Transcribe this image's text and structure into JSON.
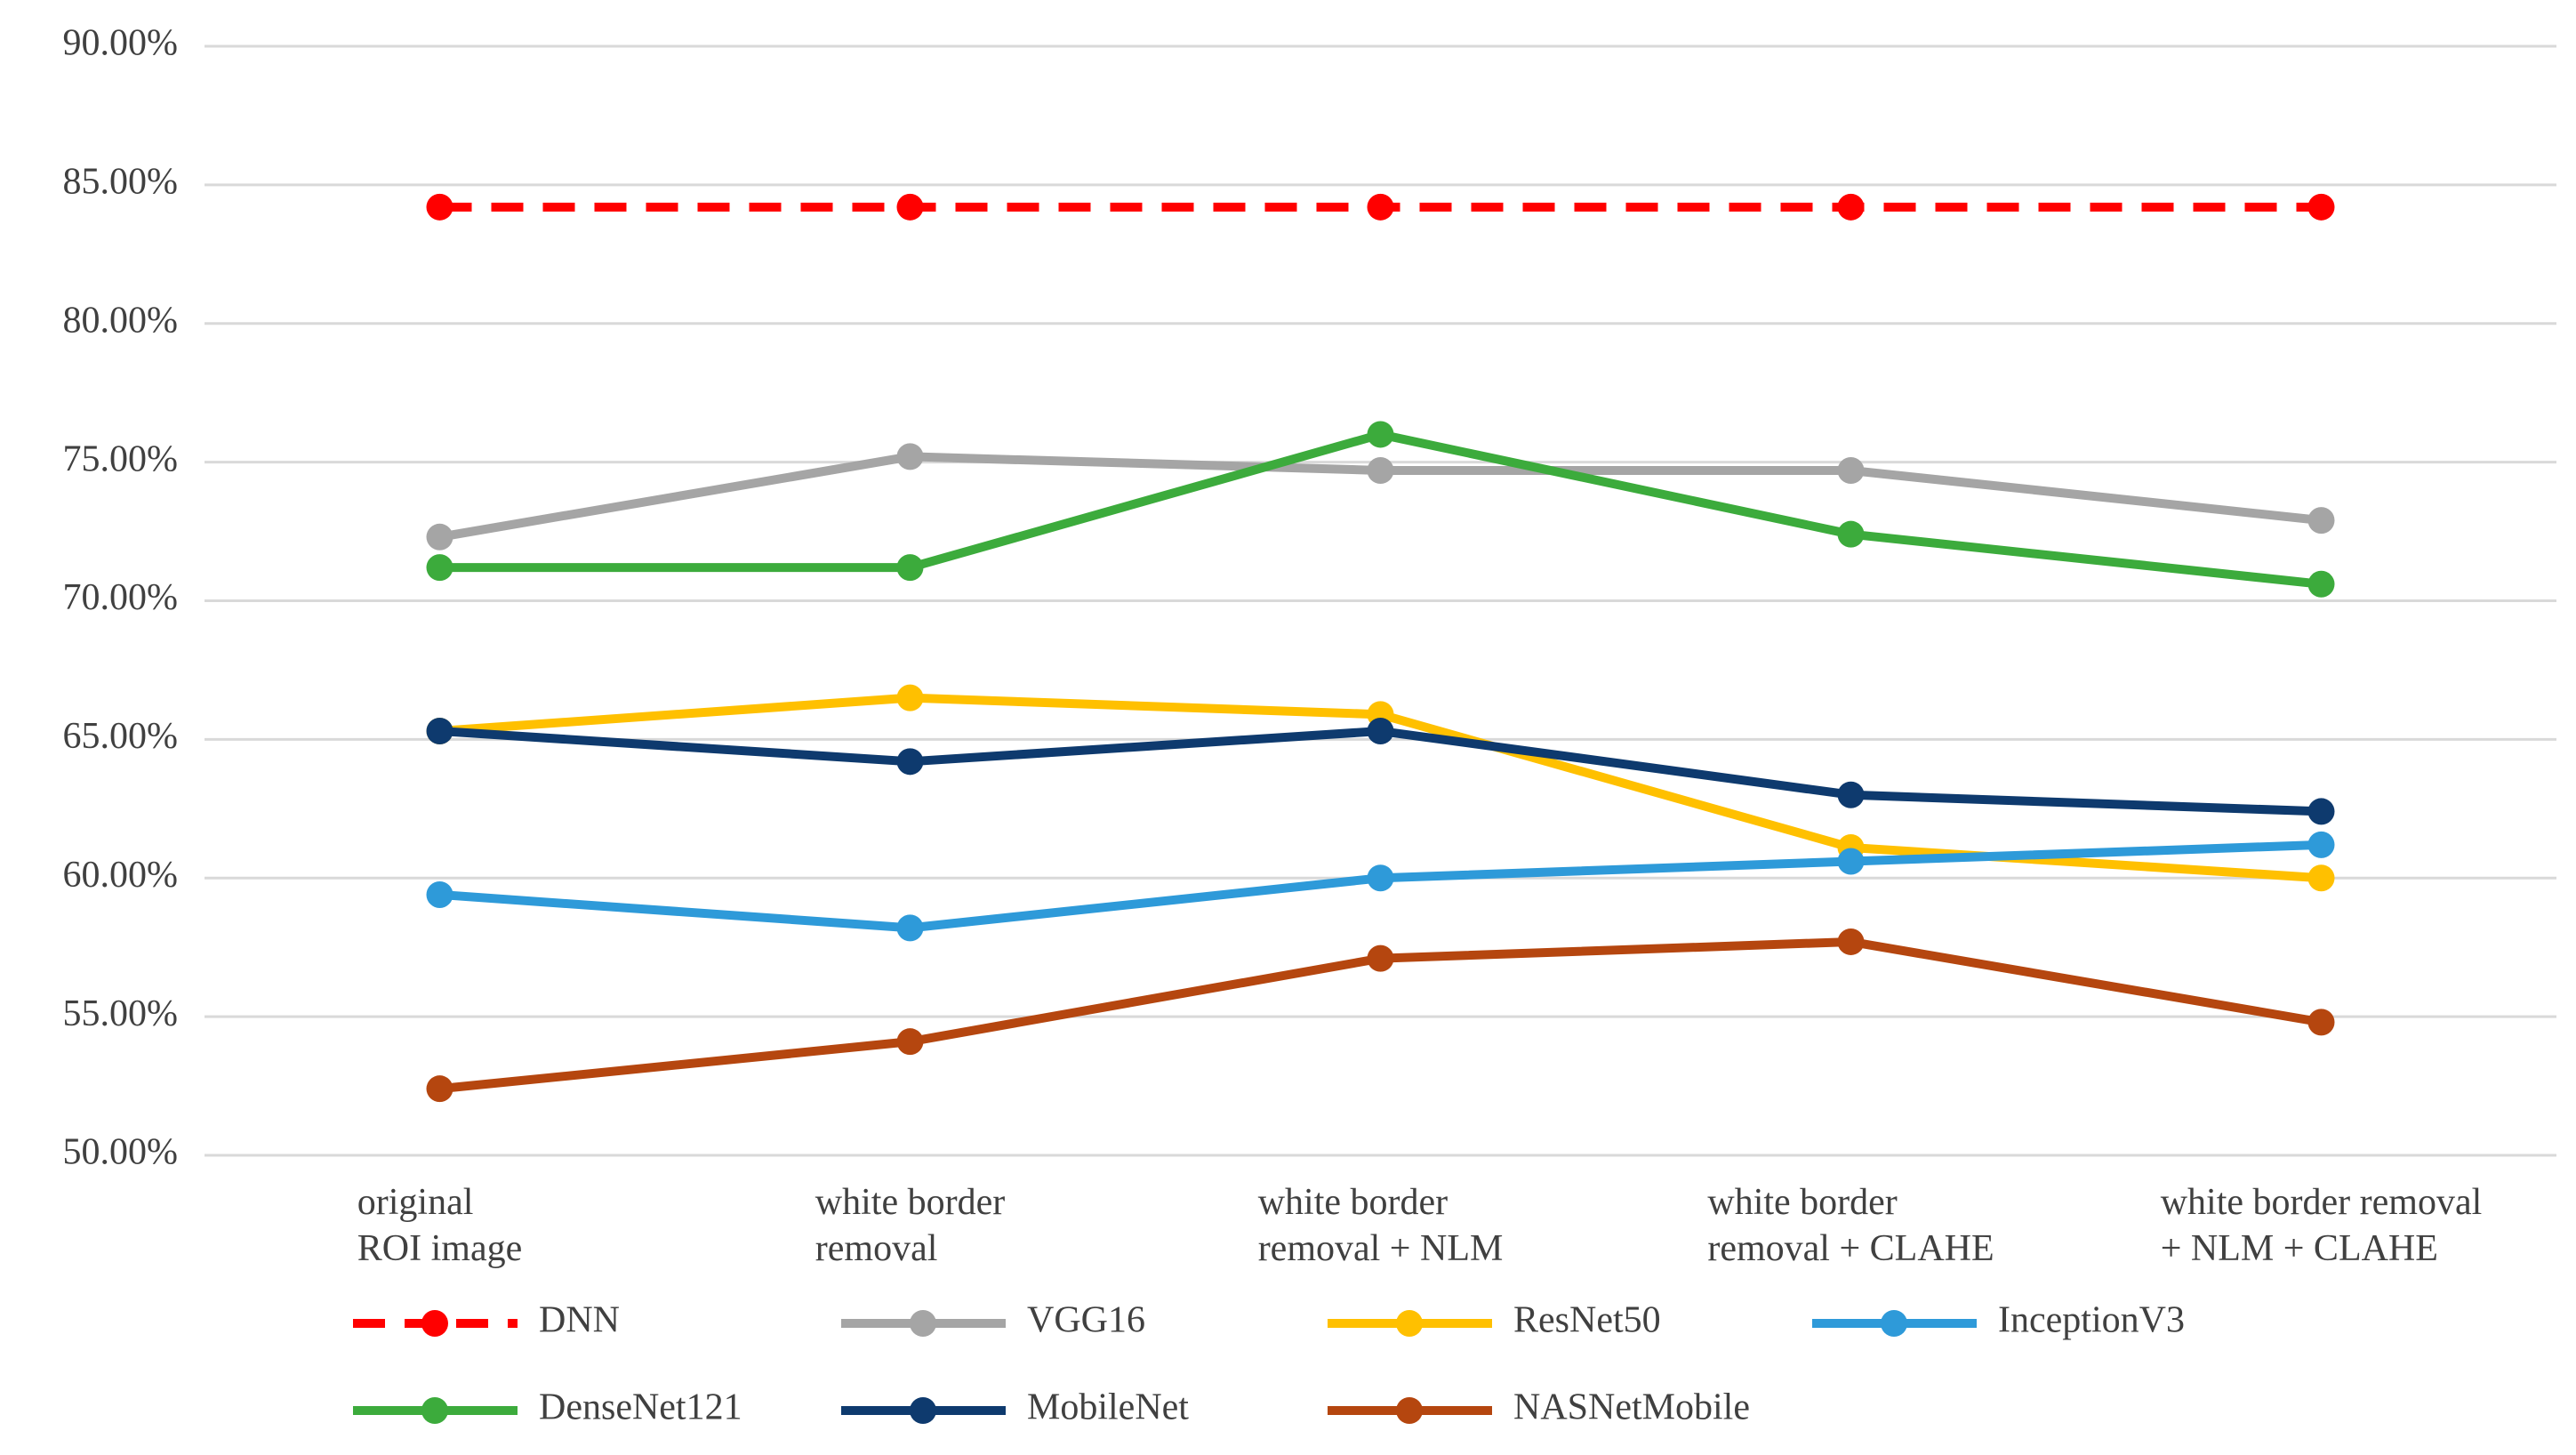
{
  "chart_data": {
    "type": "line",
    "categories": [
      "original\nROI image",
      "white border\nremoval",
      "white border\nremoval + NLM",
      "white border\nremoval + CLAHE",
      "white border removal\n+ NLM + CLAHE"
    ],
    "ylim": [
      50,
      90
    ],
    "yticks": [
      {
        "value": 50,
        "label": "50.00%"
      },
      {
        "value": 55,
        "label": "55.00%"
      },
      {
        "value": 60,
        "label": "60.00%"
      },
      {
        "value": 65,
        "label": "65.00%"
      },
      {
        "value": 70,
        "label": "70.00%"
      },
      {
        "value": 75,
        "label": "75.00%"
      },
      {
        "value": 80,
        "label": "80.00%"
      },
      {
        "value": 85,
        "label": "85.00%"
      },
      {
        "value": 90,
        "label": "90.00%"
      }
    ],
    "grid": true,
    "legend": "bottom",
    "series": [
      {
        "name": "DNN",
        "color": "#ff0000",
        "line_style": "dashed",
        "values": [
          84.2,
          84.2,
          84.2,
          84.2,
          84.2
        ]
      },
      {
        "name": "VGG16",
        "color": "#a5a5a5",
        "line_style": "solid",
        "values": [
          72.3,
          75.2,
          74.7,
          74.7,
          72.9
        ]
      },
      {
        "name": "ResNet50",
        "color": "#ffc000",
        "line_style": "solid",
        "values": [
          65.3,
          66.5,
          65.9,
          61.1,
          60.0
        ]
      },
      {
        "name": "InceptionV3",
        "color": "#2e9ad9",
        "line_style": "solid",
        "values": [
          59.4,
          58.2,
          60.0,
          60.6,
          61.2
        ]
      },
      {
        "name": "DenseNet121",
        "color": "#3cab3c",
        "line_style": "solid",
        "values": [
          71.2,
          71.2,
          76.0,
          72.4,
          70.6
        ]
      },
      {
        "name": "MobileNet",
        "color": "#0e3a6e",
        "line_style": "solid",
        "values": [
          65.3,
          64.2,
          65.3,
          63.0,
          62.4
        ]
      },
      {
        "name": "NASNetMobile",
        "color": "#b5460f",
        "line_style": "solid",
        "values": [
          52.4,
          54.1,
          57.1,
          57.7,
          54.8
        ]
      }
    ]
  }
}
